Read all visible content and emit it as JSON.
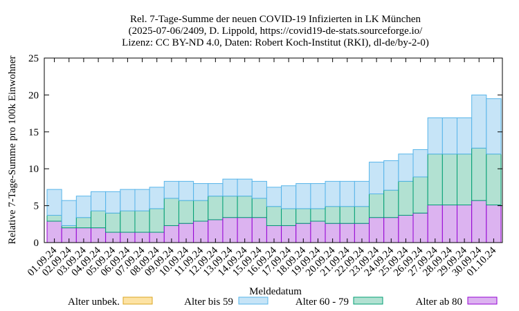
{
  "chart_data": {
    "type": "bar",
    "stacked": true,
    "title_lines": [
      "Rel. 7-Tage-Summe der neuen COVID-19 Infizierten in LK München",
      "(2025-07-06/2409, D. Lippold, https://covid19-de-stats.sourceforge.io/",
      "Lizenz: CC BY-ND 4.0, Daten: Robert Koch-Institut (RKI), dl-de/by-2-0)"
    ],
    "xlabel": "Meldedatum",
    "ylabel": "Relative 7-Tage-Summe pro 100k Einwohner",
    "ylim": [
      0,
      25
    ],
    "yticks": [
      "0",
      "5",
      "10",
      "15",
      "20",
      "25"
    ],
    "categories": [
      "01.09.24",
      "02.09.24",
      "03.09.24",
      "04.09.24",
      "05.09.24",
      "06.09.24",
      "07.09.24",
      "08.09.24",
      "09.09.24",
      "10.09.24",
      "11.09.24",
      "12.09.24",
      "13.09.24",
      "14.09.24",
      "15.09.24",
      "16.09.24",
      "17.09.24",
      "18.09.24",
      "19.09.24",
      "20.09.24",
      "21.09.24",
      "22.09.24",
      "23.09.24",
      "24.09.24",
      "25.09.24",
      "26.09.24",
      "27.09.24",
      "28.09.24",
      "29.09.24",
      "30.09.24",
      "01.10.24"
    ],
    "series": [
      {
        "name": "Alter unbek.",
        "fill": "#fde3a4",
        "stroke": "#daa520",
        "values": [
          0,
          0,
          0,
          0,
          0,
          0,
          0,
          0,
          0,
          0,
          0,
          0,
          0,
          0,
          0,
          0,
          0,
          0,
          0,
          0,
          0,
          0,
          0,
          0,
          0,
          0,
          0,
          0,
          0,
          0,
          0
        ]
      },
      {
        "name": "Alter ab 80",
        "fill": "#dcb3f0",
        "stroke": "#9400d3",
        "values": [
          2.9,
          2.0,
          2.0,
          2.0,
          1.4,
          1.4,
          1.4,
          1.4,
          2.3,
          2.6,
          2.9,
          3.1,
          3.4,
          3.4,
          3.4,
          2.3,
          2.3,
          2.6,
          2.9,
          2.6,
          2.6,
          2.6,
          3.4,
          3.4,
          3.7,
          4.0,
          5.1,
          5.1,
          5.1,
          5.7,
          5.1
        ]
      },
      {
        "name": "Alter 60 - 79",
        "fill": "#b2e1d2",
        "stroke": "#009e73",
        "values": [
          0.8,
          0.3,
          1.4,
          2.3,
          2.6,
          2.9,
          2.9,
          3.2,
          3.7,
          3.1,
          2.8,
          3.2,
          2.9,
          2.9,
          2.6,
          2.6,
          2.3,
          2.0,
          1.7,
          2.3,
          2.3,
          2.3,
          3.2,
          3.7,
          4.6,
          4.9,
          6.9,
          6.9,
          6.9,
          7.1,
          6.9
        ]
      },
      {
        "name": "Alter bis 59",
        "fill": "#c6e4f7",
        "stroke": "#56b4e9",
        "values": [
          3.5,
          3.4,
          2.9,
          2.6,
          2.9,
          2.9,
          2.9,
          2.9,
          2.3,
          2.6,
          2.3,
          1.7,
          2.3,
          2.3,
          2.3,
          2.6,
          3.1,
          3.4,
          3.4,
          3.4,
          3.4,
          3.4,
          4.3,
          4.0,
          3.7,
          3.7,
          4.9,
          4.9,
          4.9,
          7.2,
          7.5
        ]
      }
    ],
    "legend": {
      "placement": "bottom",
      "order": [
        "Alter unbek.",
        "Alter bis 59",
        "Alter 60 - 79",
        "Alter ab 80"
      ]
    },
    "grid": false
  }
}
